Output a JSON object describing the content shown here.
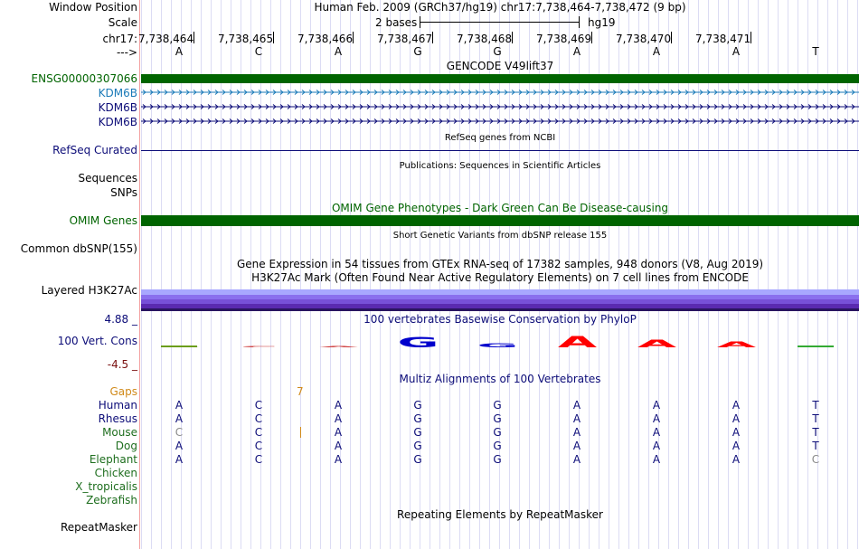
{
  "header": {
    "window_position_label": "Window Position",
    "window_position_text": "Human Feb. 2009 (GRCh37/hg19)   chr17:7,738,464-7,738,472 (9 bp)",
    "scale_label": "Scale",
    "scale_text": "2 bases",
    "assembly": "hg19",
    "chrom_label": "chr17:",
    "strand_label": "--->",
    "positions": [
      "7,738,464",
      "7,738,465",
      "7,738,466",
      "7,738,467",
      "7,738,468",
      "7,738,469",
      "7,738,470",
      "7,738,471"
    ],
    "bases": [
      "A",
      "C",
      "A",
      "G",
      "G",
      "A",
      "A",
      "A",
      "T"
    ]
  },
  "gencode": {
    "title": "GENCODE V49lift37",
    "ensg_label": "ENSG00000307066",
    "kdm_labels": [
      "KDM6B",
      "KDM6B",
      "KDM6B"
    ],
    "colors": {
      "dark_green": "#006400",
      "kdm_first": "#1a7ab8",
      "kdm": "#0c0c78"
    }
  },
  "refseq": {
    "title": "RefSeq genes from NCBI",
    "label": "RefSeq Curated"
  },
  "publications": {
    "title": "Publications: Sequences in Scientific Articles",
    "sequences_label": "Sequences",
    "snps_label": "SNPs"
  },
  "omim": {
    "title": "OMIM Gene Phenotypes - Dark Green Can Be Disease-causing",
    "label": "OMIM Genes"
  },
  "dbsnp": {
    "title": "Short Genetic Variants from dbSNP release 155",
    "label": "Common dbSNP(155)"
  },
  "gtex": {
    "title": "Gene Expression in 54 tissues from GTEx RNA-seq of 17382 samples, 948 donors (V8, Aug 2019)"
  },
  "h3k27ac": {
    "title": "H3K27Ac Mark (Often Found Near Active Regulatory Elements) on 7 cell lines from ENCODE",
    "label": "Layered H3K27Ac",
    "colors": [
      "#a8a8ff",
      "#8a70ee",
      "#7750d8",
      "#5a2ab0",
      "#2a1560"
    ]
  },
  "conservation": {
    "title": "100 vertebrates Basewise Conservation by PhyloP",
    "label": "100 Vert. Cons",
    "max_label": "4.88 _",
    "min_label": "-4.5 _",
    "logo_letters": [
      "A",
      "C",
      "A",
      "G",
      "G",
      "A",
      "A",
      "A",
      "T"
    ],
    "logo_colors": [
      "#6b9e1a",
      "#cc3333",
      "#cc3333",
      "#0000cc",
      "#0000cc",
      "#ff0000",
      "#ff0000",
      "#ff0000",
      "#33aa33"
    ]
  },
  "multiz": {
    "title": "Multiz Alignments of 100 Vertebrates",
    "gaps_label": "Gaps",
    "gap_value": "7",
    "species": [
      {
        "name": "Human",
        "bases": [
          "A",
          "C",
          "A",
          "G",
          "G",
          "A",
          "A",
          "A",
          "T"
        ]
      },
      {
        "name": "Rhesus",
        "bases": [
          "A",
          "C",
          "A",
          "G",
          "G",
          "A",
          "A",
          "A",
          "T"
        ]
      },
      {
        "name": "Mouse",
        "bases": [
          "C",
          "C",
          "A",
          "G",
          "G",
          "A",
          "A",
          "A",
          "T"
        ]
      },
      {
        "name": "Dog",
        "bases": [
          "A",
          "C",
          "A",
          "G",
          "G",
          "A",
          "A",
          "A",
          "T"
        ]
      },
      {
        "name": "Elephant",
        "bases": [
          "A",
          "C",
          "A",
          "G",
          "G",
          "A",
          "A",
          "A",
          "C"
        ]
      },
      {
        "name": "Chicken",
        "bases": []
      },
      {
        "name": "X_tropicalis",
        "bases": []
      },
      {
        "name": "Zebrafish",
        "bases": []
      }
    ],
    "colors": {
      "primate": "#0c0c78",
      "mammal": "#1e6e1e",
      "gaps": "#d08a1a",
      "mismatch": "#8a8a8a"
    }
  },
  "repeatmasker": {
    "title": "Repeating Elements by RepeatMasker",
    "label": "RepeatMasker"
  }
}
